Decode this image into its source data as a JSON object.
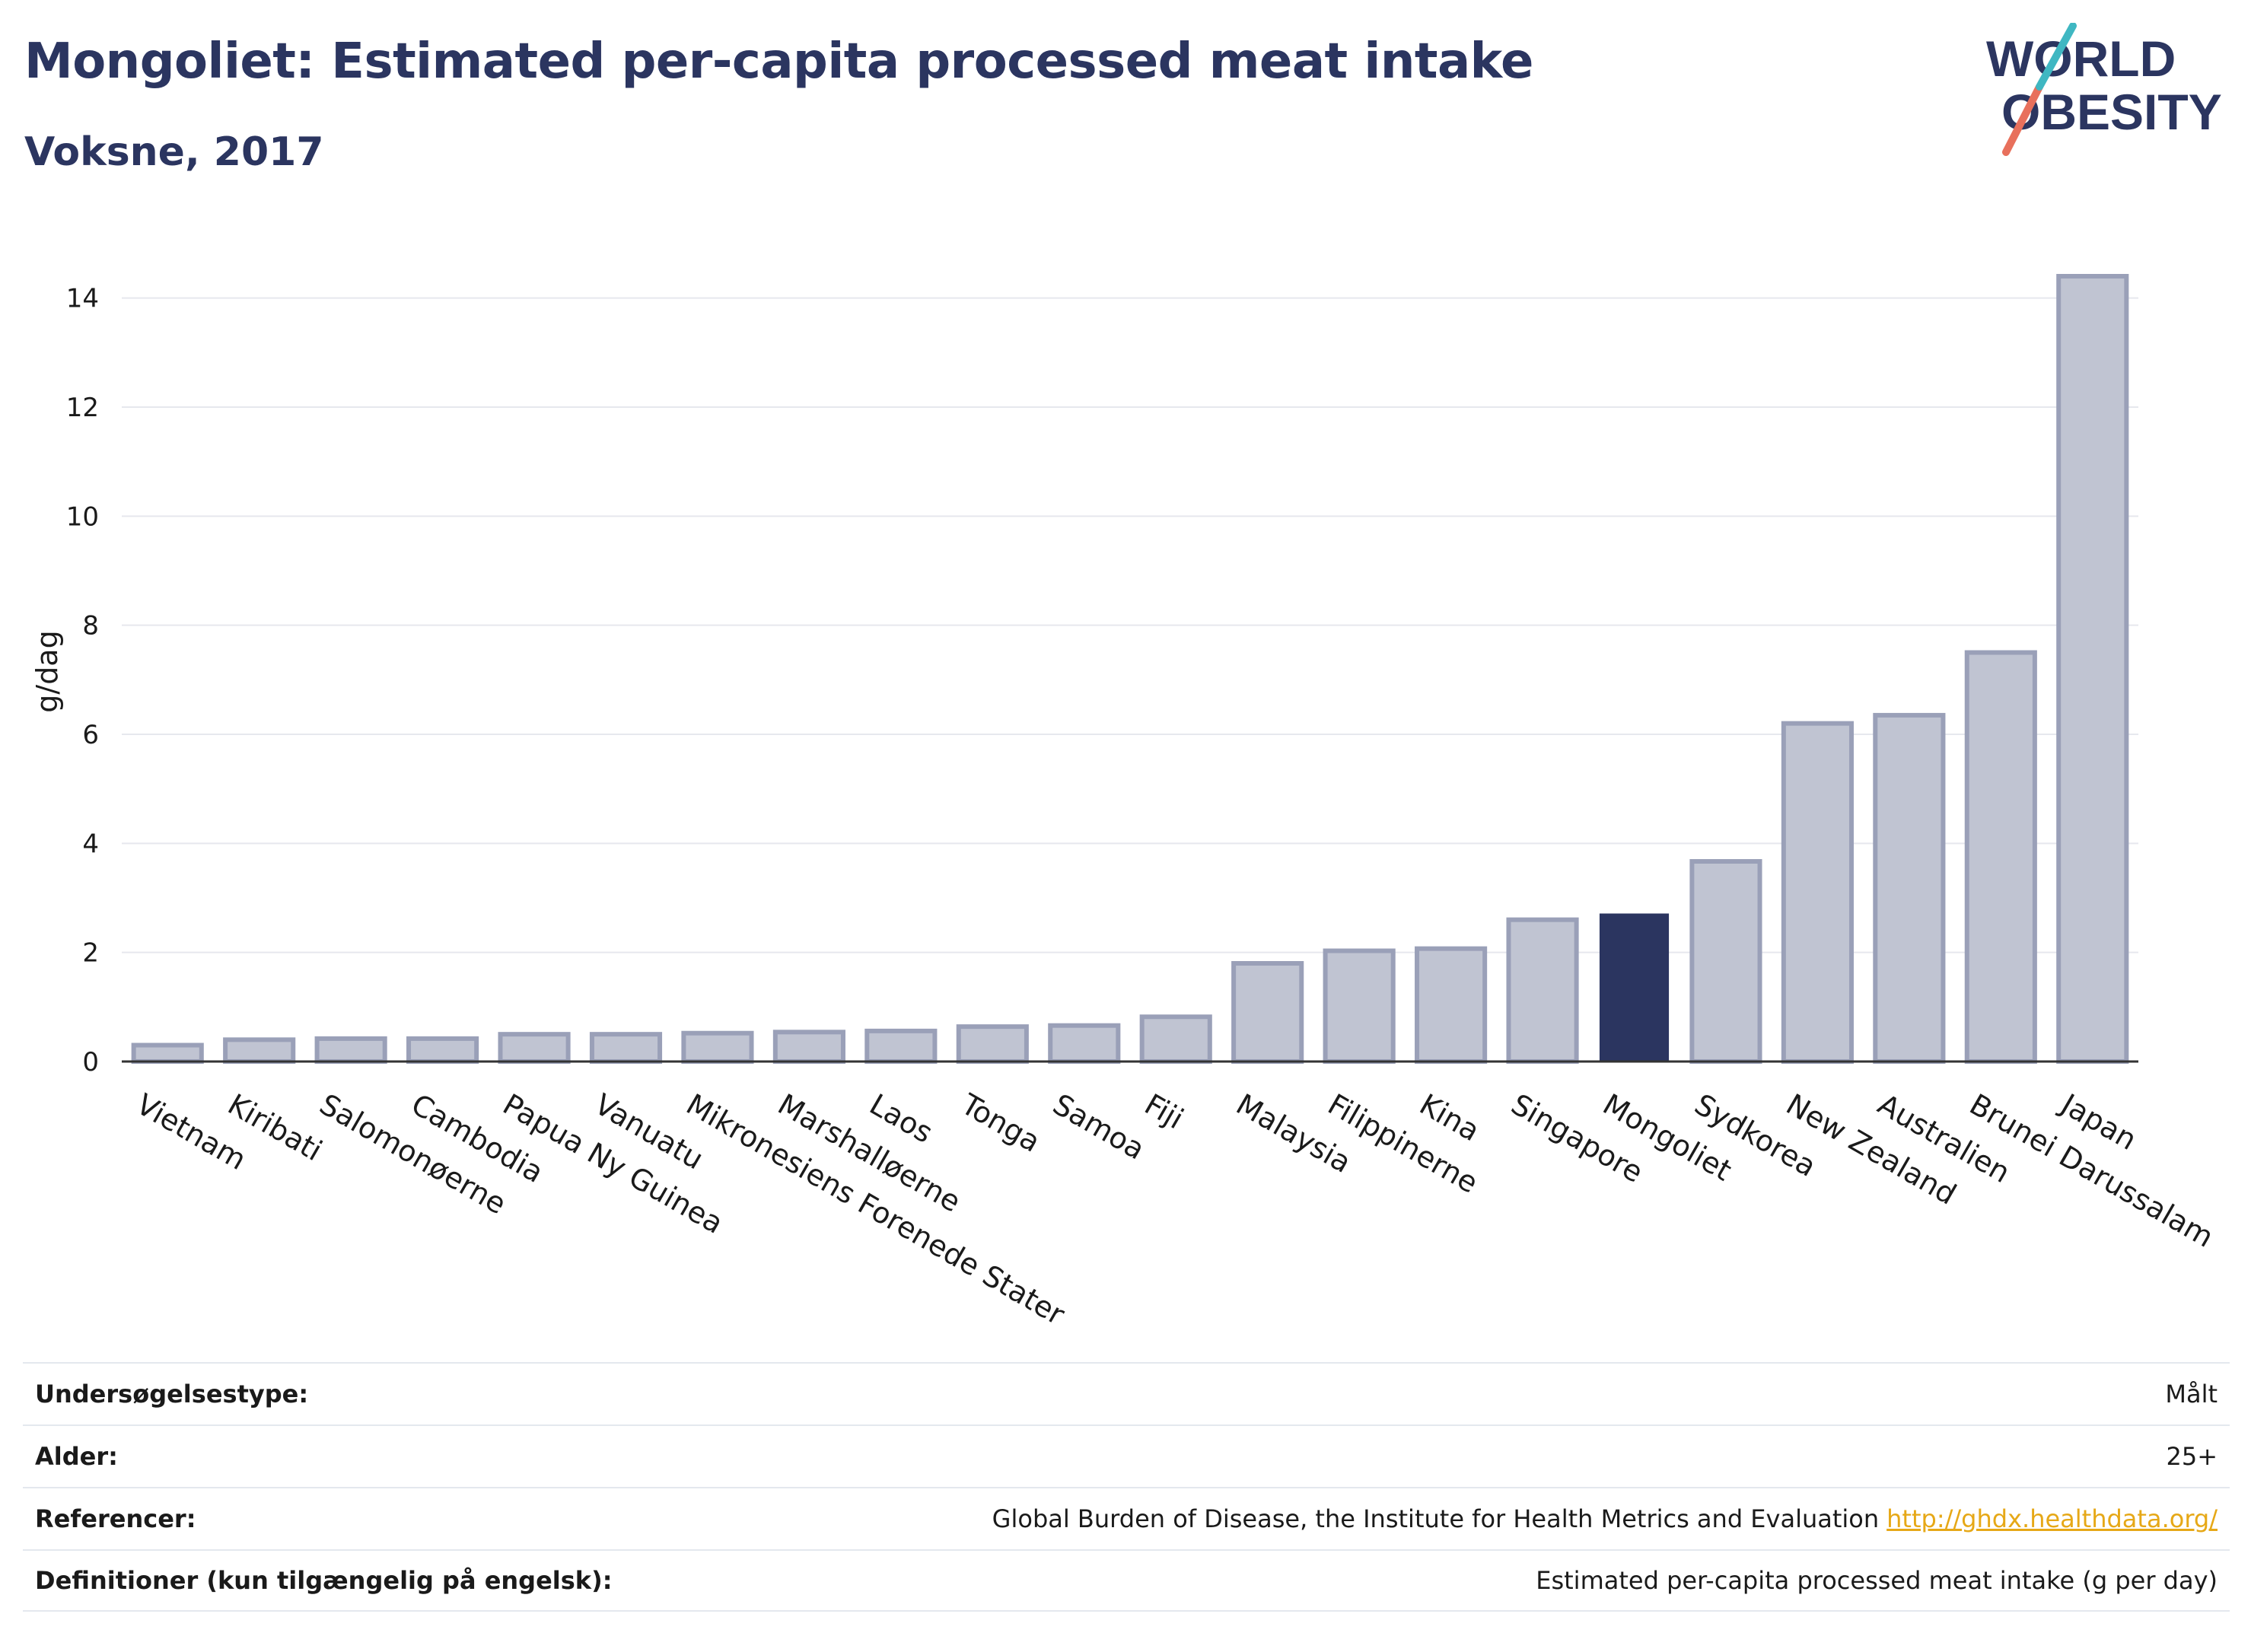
{
  "header": {
    "title": "Mongoliet: Estimated per-capita processed meat intake",
    "subtitle": "Voksne, 2017"
  },
  "logo": {
    "line1": "WORLD",
    "line2": "OBESITY"
  },
  "colors": {
    "highlight_bar": "#2b3560",
    "default_bar": "#c0c4d2",
    "default_bar_stroke": "#9aa0b8",
    "grid": "#e6e8ee",
    "link": "#e6a817"
  },
  "chart_data": {
    "type": "bar",
    "title": "Mongoliet: Estimated per-capita processed meat intake",
    "subtitle": "Voksne, 2017",
    "xlabel": "",
    "ylabel": "g/dag",
    "ylim": [
      0,
      15
    ],
    "yticks": [
      0,
      2,
      4,
      6,
      8,
      10,
      12,
      14
    ],
    "grid": true,
    "highlight": "Mongoliet",
    "categories": [
      "Vietnam",
      "Kiribati",
      "Salomonøerne",
      "Cambodia",
      "Papua Ny Guinea",
      "Vanuatu",
      "Mikronesiens Forenede Stater",
      "Marshalløerne",
      "Laos",
      "Tonga",
      "Samoa",
      "Fiji",
      "Malaysia",
      "Filippinerne",
      "Kina",
      "Singapore",
      "Mongoliet",
      "Sydkorea",
      "New Zealand",
      "Australien",
      "Brunei Darussalam",
      "Japan"
    ],
    "values": [
      0.3,
      0.4,
      0.42,
      0.42,
      0.5,
      0.5,
      0.52,
      0.54,
      0.56,
      0.64,
      0.66,
      0.82,
      1.8,
      2.03,
      2.07,
      2.6,
      2.7,
      3.67,
      6.2,
      6.35,
      7.5,
      14.4
    ]
  },
  "meta": [
    {
      "key": "Undersøgelsestype:",
      "value": "Målt",
      "link": ""
    },
    {
      "key": "Alder:",
      "value": "25+",
      "link": ""
    },
    {
      "key": "Referencer:",
      "value": "Global Burden of Disease, the Institute for Health Metrics and Evaluation",
      "link": "http://ghdx.healthdata.org/"
    },
    {
      "key": "Definitioner (kun tilgængelig på engelsk):",
      "value": "Estimated per-capita processed meat intake (g per day)",
      "link": ""
    }
  ]
}
